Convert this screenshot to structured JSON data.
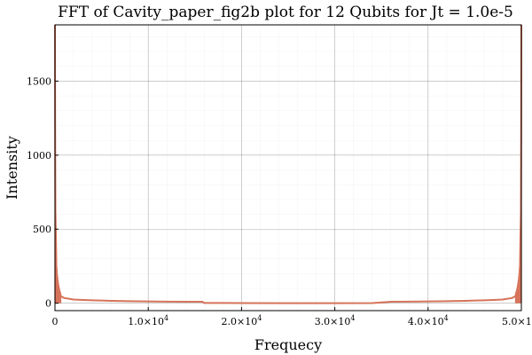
{
  "chart_data": {
    "type": "line",
    "title": "FFT of Cavity_paper_fig2b plot for 12 Qubits for Jt = 1.0e-5",
    "xlabel": "Frequecy",
    "ylabel": "Intensity",
    "xlim": [
      0,
      50000
    ],
    "ylim": [
      -50,
      1880
    ],
    "x_ticks": [
      {
        "value": 0,
        "label": "0",
        "mant": "",
        "exp": ""
      },
      {
        "value": 10000,
        "label": "",
        "mant": "1.0×10",
        "exp": "4"
      },
      {
        "value": 20000,
        "label": "",
        "mant": "2.0×10",
        "exp": "4"
      },
      {
        "value": 30000,
        "label": "",
        "mant": "3.0×10",
        "exp": "4"
      },
      {
        "value": 40000,
        "label": "",
        "mant": "4.0×10",
        "exp": "4"
      },
      {
        "value": 50000,
        "label": "",
        "mant": "5.0×10",
        "exp": "4"
      }
    ],
    "y_ticks": [
      {
        "value": 0,
        "label": "0"
      },
      {
        "value": 500,
        "label": "500"
      },
      {
        "value": 1000,
        "label": "1000"
      },
      {
        "value": 1500,
        "label": "1500"
      }
    ],
    "grid": true,
    "series": [
      {
        "color": "#d6735a",
        "x": [
          0,
          20,
          50,
          100,
          150,
          200,
          300,
          400,
          500,
          700,
          1000,
          1500,
          2000,
          3000,
          4000,
          5000,
          6000,
          8000,
          10000,
          12000,
          14000,
          15800,
          16000,
          20000,
          25000,
          30000,
          34000,
          34200,
          36000,
          38000,
          40000,
          42000,
          44000,
          45000,
          46000,
          47000,
          48000,
          48500,
          49000,
          49300,
          49500,
          49600,
          49700,
          49800,
          49850,
          49900,
          49950,
          49980,
          50000
        ],
        "y": [
          1880,
          1200,
          620,
          460,
          250,
          170,
          100,
          80,
          60,
          45,
          35,
          30,
          25,
          22,
          20,
          18,
          16,
          14,
          12,
          11,
          10,
          10,
          2,
          1,
          0,
          0,
          1,
          2,
          10,
          11,
          12,
          14,
          16,
          18,
          20,
          22,
          25,
          30,
          35,
          45,
          60,
          80,
          100,
          170,
          250,
          460,
          620,
          1200,
          1880
        ]
      }
    ]
  }
}
